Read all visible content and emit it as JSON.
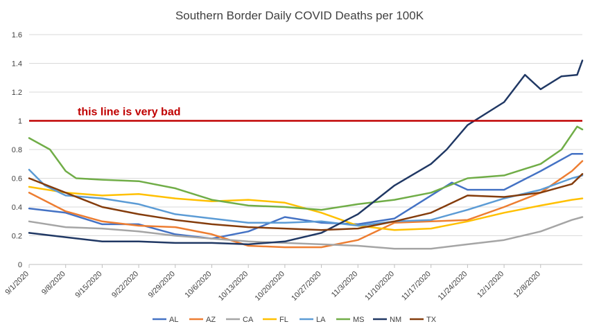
{
  "chart_data": {
    "type": "line",
    "title": "Southern Border Daily COVID Deaths per 100K",
    "xlabel": "",
    "ylabel": "",
    "ylim": [
      0,
      1.6
    ],
    "yticks": [
      0,
      0.2,
      0.4,
      0.6,
      0.8,
      1,
      1.2,
      1.4,
      1.6
    ],
    "grid": "horizontal",
    "legend": "bottom",
    "x_start": "9/1/2020",
    "x_end": "12/16/2020",
    "xtick_labels": [
      "9/1/2020",
      "9/8/2020",
      "9/15/2020",
      "9/22/2020",
      "9/29/2020",
      "10/6/2020",
      "10/13/2020",
      "10/20/2020",
      "10/27/2020",
      "11/3/2020",
      "11/10/2020",
      "11/17/2020",
      "11/24/2020",
      "12/1/2020",
      "12/8/2020"
    ],
    "reference_line": {
      "value": 1.0,
      "label": "this line is very bad",
      "color": "#C00000"
    },
    "series": [
      {
        "name": "AL",
        "color": "#4472C4",
        "points": [
          [
            "9/1/2020",
            0.39
          ],
          [
            "9/8/2020",
            0.36
          ],
          [
            "9/15/2020",
            0.28
          ],
          [
            "9/22/2020",
            0.28
          ],
          [
            "9/29/2020",
            0.21
          ],
          [
            "10/6/2020",
            0.18
          ],
          [
            "10/13/2020",
            0.23
          ],
          [
            "10/20/2020",
            0.33
          ],
          [
            "10/27/2020",
            0.29
          ],
          [
            "11/3/2020",
            0.28
          ],
          [
            "11/10/2020",
            0.32
          ],
          [
            "11/17/2020",
            0.48
          ],
          [
            "11/21/2020",
            0.57
          ],
          [
            "11/24/2020",
            0.52
          ],
          [
            "12/1/2020",
            0.52
          ],
          [
            "12/8/2020",
            0.65
          ],
          [
            "12/14/2020",
            0.77
          ],
          [
            "12/16/2020",
            0.77
          ]
        ]
      },
      {
        "name": "AZ",
        "color": "#ED7D31",
        "points": [
          [
            "9/1/2020",
            0.5
          ],
          [
            "9/8/2020",
            0.37
          ],
          [
            "9/15/2020",
            0.3
          ],
          [
            "9/22/2020",
            0.27
          ],
          [
            "9/29/2020",
            0.26
          ],
          [
            "10/6/2020",
            0.21
          ],
          [
            "10/13/2020",
            0.13
          ],
          [
            "10/20/2020",
            0.12
          ],
          [
            "10/27/2020",
            0.12
          ],
          [
            "11/3/2020",
            0.17
          ],
          [
            "11/10/2020",
            0.29
          ],
          [
            "11/17/2020",
            0.3
          ],
          [
            "11/24/2020",
            0.31
          ],
          [
            "12/1/2020",
            0.4
          ],
          [
            "12/8/2020",
            0.5
          ],
          [
            "12/14/2020",
            0.65
          ],
          [
            "12/16/2020",
            0.72
          ]
        ]
      },
      {
        "name": "CA",
        "color": "#A5A5A5",
        "points": [
          [
            "9/1/2020",
            0.3
          ],
          [
            "9/8/2020",
            0.26
          ],
          [
            "9/15/2020",
            0.25
          ],
          [
            "9/22/2020",
            0.23
          ],
          [
            "9/29/2020",
            0.2
          ],
          [
            "10/6/2020",
            0.18
          ],
          [
            "10/13/2020",
            0.16
          ],
          [
            "10/20/2020",
            0.15
          ],
          [
            "10/27/2020",
            0.14
          ],
          [
            "11/3/2020",
            0.13
          ],
          [
            "11/10/2020",
            0.11
          ],
          [
            "11/17/2020",
            0.11
          ],
          [
            "11/24/2020",
            0.14
          ],
          [
            "12/1/2020",
            0.17
          ],
          [
            "12/8/2020",
            0.23
          ],
          [
            "12/14/2020",
            0.31
          ],
          [
            "12/16/2020",
            0.33
          ]
        ]
      },
      {
        "name": "FL",
        "color": "#FFC000",
        "points": [
          [
            "9/1/2020",
            0.54
          ],
          [
            "9/8/2020",
            0.5
          ],
          [
            "9/15/2020",
            0.48
          ],
          [
            "9/22/2020",
            0.49
          ],
          [
            "9/29/2020",
            0.46
          ],
          [
            "10/6/2020",
            0.44
          ],
          [
            "10/13/2020",
            0.45
          ],
          [
            "10/20/2020",
            0.43
          ],
          [
            "10/27/2020",
            0.36
          ],
          [
            "11/3/2020",
            0.27
          ],
          [
            "11/10/2020",
            0.24
          ],
          [
            "11/17/2020",
            0.25
          ],
          [
            "11/24/2020",
            0.3
          ],
          [
            "12/1/2020",
            0.36
          ],
          [
            "12/8/2020",
            0.41
          ],
          [
            "12/14/2020",
            0.45
          ],
          [
            "12/16/2020",
            0.46
          ]
        ]
      },
      {
        "name": "LA",
        "color": "#5B9BD5",
        "points": [
          [
            "9/1/2020",
            0.66
          ],
          [
            "9/4/2020",
            0.55
          ],
          [
            "9/8/2020",
            0.48
          ],
          [
            "9/15/2020",
            0.46
          ],
          [
            "9/22/2020",
            0.42
          ],
          [
            "9/29/2020",
            0.35
          ],
          [
            "10/6/2020",
            0.32
          ],
          [
            "10/13/2020",
            0.29
          ],
          [
            "10/20/2020",
            0.29
          ],
          [
            "10/27/2020",
            0.3
          ],
          [
            "11/3/2020",
            0.27
          ],
          [
            "11/10/2020",
            0.3
          ],
          [
            "11/17/2020",
            0.31
          ],
          [
            "11/24/2020",
            0.38
          ],
          [
            "12/1/2020",
            0.46
          ],
          [
            "12/8/2020",
            0.52
          ],
          [
            "12/14/2020",
            0.6
          ],
          [
            "12/16/2020",
            0.62
          ]
        ]
      },
      {
        "name": "MS",
        "color": "#70AD47",
        "points": [
          [
            "9/1/2020",
            0.88
          ],
          [
            "9/5/2020",
            0.8
          ],
          [
            "9/8/2020",
            0.65
          ],
          [
            "9/10/2020",
            0.6
          ],
          [
            "9/15/2020",
            0.59
          ],
          [
            "9/22/2020",
            0.58
          ],
          [
            "9/29/2020",
            0.53
          ],
          [
            "10/6/2020",
            0.45
          ],
          [
            "10/13/2020",
            0.41
          ],
          [
            "10/20/2020",
            0.4
          ],
          [
            "10/27/2020",
            0.38
          ],
          [
            "11/3/2020",
            0.42
          ],
          [
            "11/10/2020",
            0.45
          ],
          [
            "11/17/2020",
            0.5
          ],
          [
            "11/24/2020",
            0.6
          ],
          [
            "12/1/2020",
            0.62
          ],
          [
            "12/8/2020",
            0.7
          ],
          [
            "12/12/2020",
            0.8
          ],
          [
            "12/15/2020",
            0.96
          ],
          [
            "12/16/2020",
            0.94
          ]
        ]
      },
      {
        "name": "NM",
        "color": "#203864",
        "points": [
          [
            "9/1/2020",
            0.22
          ],
          [
            "9/8/2020",
            0.19
          ],
          [
            "9/15/2020",
            0.16
          ],
          [
            "9/22/2020",
            0.16
          ],
          [
            "9/29/2020",
            0.15
          ],
          [
            "10/6/2020",
            0.15
          ],
          [
            "10/13/2020",
            0.14
          ],
          [
            "10/20/2020",
            0.16
          ],
          [
            "10/27/2020",
            0.22
          ],
          [
            "11/3/2020",
            0.35
          ],
          [
            "11/10/2020",
            0.55
          ],
          [
            "11/17/2020",
            0.7
          ],
          [
            "11/20/2020",
            0.8
          ],
          [
            "11/24/2020",
            0.97
          ],
          [
            "12/1/2020",
            1.13
          ],
          [
            "12/5/2020",
            1.32
          ],
          [
            "12/8/2020",
            1.22
          ],
          [
            "12/12/2020",
            1.31
          ],
          [
            "12/15/2020",
            1.32
          ],
          [
            "12/16/2020",
            1.42
          ]
        ]
      },
      {
        "name": "TX",
        "color": "#843C0C",
        "points": [
          [
            "9/1/2020",
            0.6
          ],
          [
            "9/8/2020",
            0.5
          ],
          [
            "9/15/2020",
            0.4
          ],
          [
            "9/22/2020",
            0.35
          ],
          [
            "9/29/2020",
            0.31
          ],
          [
            "10/6/2020",
            0.28
          ],
          [
            "10/13/2020",
            0.26
          ],
          [
            "10/20/2020",
            0.25
          ],
          [
            "10/27/2020",
            0.24
          ],
          [
            "11/3/2020",
            0.25
          ],
          [
            "11/10/2020",
            0.3
          ],
          [
            "11/17/2020",
            0.36
          ],
          [
            "11/24/2020",
            0.48
          ],
          [
            "12/1/2020",
            0.47
          ],
          [
            "12/8/2020",
            0.5
          ],
          [
            "12/14/2020",
            0.56
          ],
          [
            "12/16/2020",
            0.63
          ]
        ]
      }
    ]
  }
}
